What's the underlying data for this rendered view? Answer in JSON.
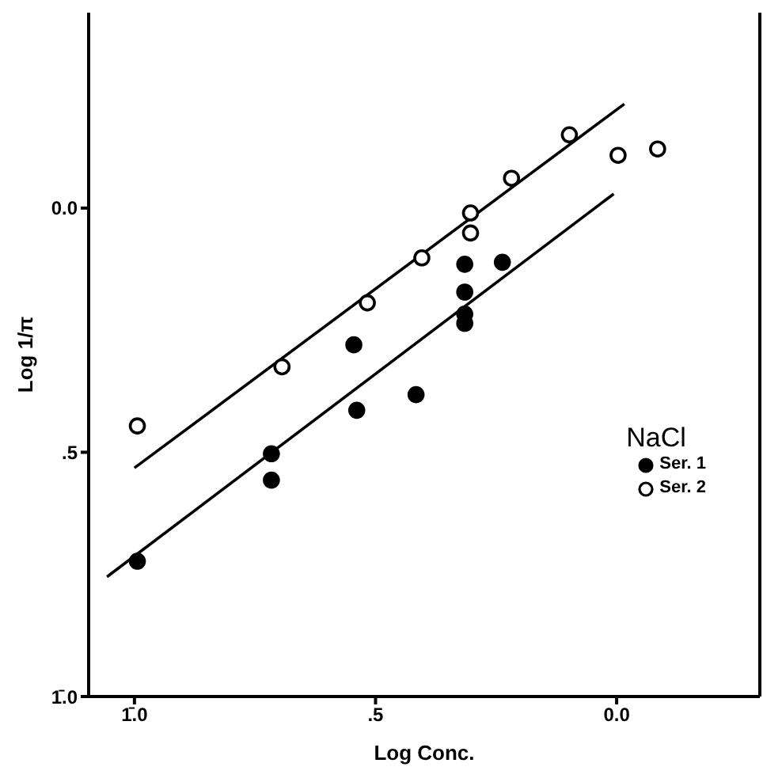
{
  "chart_data": {
    "type": "scatter",
    "xlabel": "Log Conc.",
    "ylabel": "Log 1/π",
    "legend_title": "NaCl",
    "legend": "bottom right",
    "grid": false,
    "marker": "circle",
    "xlim": [
      -1.095,
      0.297
    ],
    "xticks": [
      {
        "value": -1.0,
        "label": "1̄.0"
      },
      {
        "value": -0.5,
        "label": ".5"
      },
      {
        "value": 0,
        "label": "0.0"
      }
    ],
    "ylim": [
      -1.0,
      0.4
    ],
    "yticks": [
      {
        "value": -1.0,
        "label": "1̄.0"
      },
      {
        "value": -0.5,
        "label": ".5"
      },
      {
        "value": 0,
        "label": "0.0"
      }
    ],
    "series": [
      {
        "name": "Ser. 1",
        "color": "#000000",
        "x": [
          -0.994,
          -0.716,
          -0.716,
          -0.539,
          -0.545,
          -0.416,
          -0.315,
          -0.315,
          -0.315,
          -0.315,
          -0.237
        ],
        "values": [
          -0.723,
          -0.503,
          -0.557,
          -0.414,
          -0.28,
          -0.382,
          -0.115,
          -0.172,
          -0.217,
          -0.236,
          -0.111
        ]
      },
      {
        "name": "Ser. 2",
        "color": "#ffffff",
        "x": [
          -0.994,
          -0.694,
          -0.517,
          -0.404,
          -0.303,
          -0.303,
          -0.218,
          -0.098,
          0.003,
          0.085
        ],
        "values": [
          -0.446,
          -0.325,
          -0.194,
          -0.102,
          -0.01,
          -0.051,
          0.061,
          0.15,
          0.108,
          0.121
        ]
      },
      {
        "type": "line",
        "marker": "none",
        "color": "#000000",
        "x": [
          -1.0,
          0.016
        ],
        "values": [
          -0.532,
          0.213
        ]
      },
      {
        "type": "line",
        "marker": "none",
        "color": "#000000",
        "x": [
          -1.057,
          -0.006
        ],
        "values": [
          -0.755,
          0.029
        ]
      }
    ]
  }
}
